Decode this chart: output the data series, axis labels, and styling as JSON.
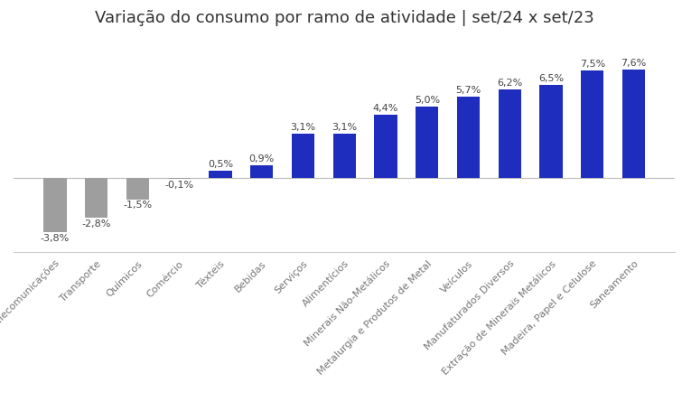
{
  "title": "Variação do consumo por ramo de atividade | set/24 x set/23",
  "categories": [
    "Telecomunicações",
    "Transporte",
    "Químicos",
    "Comércio",
    "Têxteis",
    "Bebidas",
    "Serviços",
    "Alimentícios",
    "Minerais Não-Metálicos",
    "Metalurgia e Produtos de Metal",
    "Veículos",
    "Manufaturados Diversos",
    "Extração de Minerais Metálicos",
    "Madeira, Papel e Celulose",
    "Saneamento"
  ],
  "values": [
    -3.8,
    -2.8,
    -1.5,
    -0.1,
    0.5,
    0.9,
    3.1,
    3.1,
    4.4,
    5.0,
    5.7,
    6.2,
    6.5,
    7.5,
    7.6
  ],
  "bar_colors_positive": "#1f2dbe",
  "bar_colors_negative": "#9e9e9e",
  "title_fontsize": 13,
  "label_fontsize": 8,
  "value_fontsize": 8,
  "ylim": [
    -5.2,
    9.8
  ],
  "background_color": "#ffffff",
  "bar_width": 0.55
}
